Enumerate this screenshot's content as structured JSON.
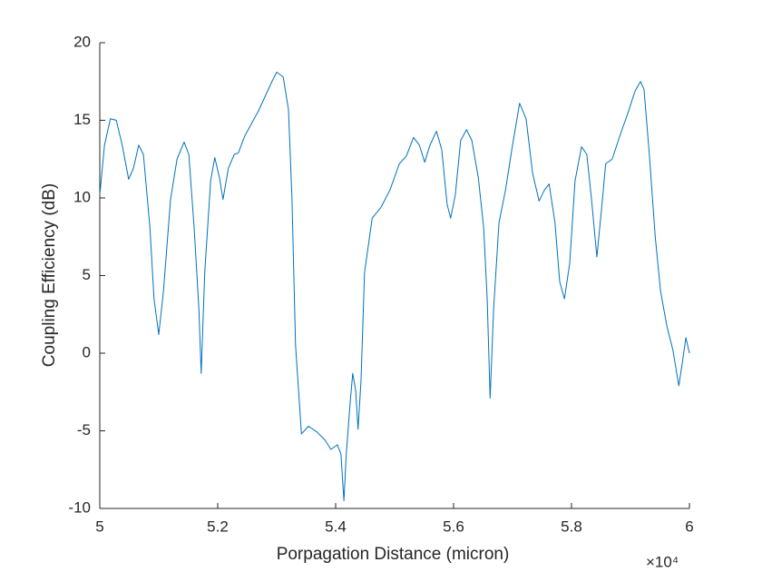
{
  "chart_data": {
    "type": "line",
    "x_label": "Porpagation Distance (micron)",
    "y_label": "Coupling Efficiency (dB)",
    "x_exponent_label": "×10⁴",
    "xlim": [
      5,
      6
    ],
    "xticks": [
      5,
      5.2,
      5.4,
      5.6,
      5.8,
      6
    ],
    "ylim": [
      -10,
      20
    ],
    "yticks": [
      -10,
      -5,
      0,
      5,
      10,
      15,
      20
    ],
    "grid": false,
    "series": [
      {
        "color": "#0072bd",
        "x": [
          5.0,
          5.008,
          5.018,
          5.028,
          5.038,
          5.049,
          5.057,
          5.066,
          5.074,
          5.085,
          5.092,
          5.1,
          5.108,
          5.12,
          5.131,
          5.143,
          5.151,
          5.16,
          5.168,
          5.172,
          5.178,
          5.188,
          5.195,
          5.203,
          5.209,
          5.218,
          5.228,
          5.235,
          5.246,
          5.269,
          5.292,
          5.3,
          5.311,
          5.32,
          5.326,
          5.332,
          5.342,
          5.354,
          5.369,
          5.382,
          5.392,
          5.403,
          5.409,
          5.414,
          5.418,
          5.425,
          5.429,
          5.434,
          5.438,
          5.443,
          5.449,
          5.462,
          5.477,
          5.492,
          5.508,
          5.52,
          5.532,
          5.542,
          5.551,
          5.56,
          5.571,
          5.58,
          5.589,
          5.595,
          5.603,
          5.612,
          5.622,
          5.631,
          5.642,
          5.651,
          5.657,
          5.662,
          5.668,
          5.677,
          5.688,
          5.7,
          5.712,
          5.723,
          5.734,
          5.745,
          5.754,
          5.762,
          5.772,
          5.78,
          5.788,
          5.797,
          5.806,
          5.817,
          5.826,
          5.834,
          5.843,
          5.851,
          5.858,
          5.869,
          5.882,
          5.895,
          5.908,
          5.917,
          5.923,
          5.932,
          5.942,
          5.951,
          5.962,
          5.972,
          5.982,
          5.988,
          5.994,
          6.0
        ],
        "values": [
          10.2,
          13.4,
          15.1,
          15.0,
          13.4,
          11.2,
          11.9,
          13.4,
          12.8,
          8.1,
          3.5,
          1.2,
          4.0,
          9.9,
          12.5,
          13.6,
          12.8,
          8.1,
          2.9,
          -1.3,
          5.2,
          11.1,
          12.6,
          11.3,
          9.9,
          11.9,
          12.8,
          12.9,
          14.0,
          15.6,
          17.5,
          18.1,
          17.8,
          15.7,
          9.9,
          0.5,
          -5.2,
          -4.7,
          -5.1,
          -5.6,
          -6.2,
          -5.9,
          -6.5,
          -9.5,
          -6.5,
          -3.0,
          -1.3,
          -2.4,
          -4.9,
          -1.8,
          5.2,
          8.7,
          9.4,
          10.5,
          12.2,
          12.7,
          13.9,
          13.4,
          12.3,
          13.4,
          14.3,
          13.1,
          9.6,
          8.7,
          10.2,
          13.7,
          14.4,
          13.7,
          11.3,
          8.1,
          3.5,
          -2.9,
          2.9,
          8.4,
          10.5,
          13.4,
          16.1,
          15.1,
          11.6,
          9.8,
          10.5,
          10.9,
          8.4,
          4.6,
          3.5,
          5.8,
          11.1,
          13.3,
          12.8,
          9.9,
          6.2,
          9.3,
          12.2,
          12.5,
          14.0,
          15.4,
          16.9,
          17.5,
          17.0,
          12.8,
          7.5,
          4.0,
          1.7,
          0.2,
          -2.1,
          -0.6,
          1.0,
          0.0
        ]
      }
    ]
  }
}
